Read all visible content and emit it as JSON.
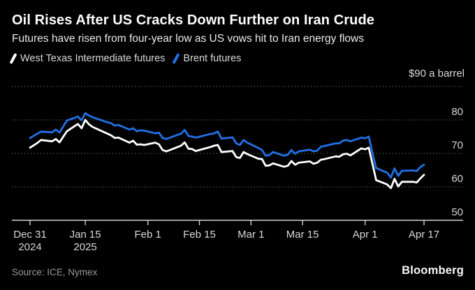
{
  "header": {
    "title": "Oil Rises After US Cracks Down Further on Iran Crude",
    "subtitle": "Futures have risen from four-year low as US vows hit to Iran energy flows"
  },
  "legend": {
    "items": [
      {
        "label": "West Texas Intermediate futures",
        "color": "#ffffff",
        "icon": "line-slash-icon"
      },
      {
        "label": "Brent futures",
        "color": "#2170e4",
        "icon": "line-slash-icon"
      }
    ]
  },
  "footer": {
    "source": "Source: ICE, Nymex",
    "brand": "Bloomberg"
  },
  "colors": {
    "background": "#000000",
    "grid": "#606060",
    "axis": "#d4d4d4",
    "tick_text": "#d9d9d9",
    "wti_line": "#ffffff",
    "brent_line": "#2170e4"
  },
  "chart_data": {
    "type": "line",
    "title": "Oil Rises After US Cracks Down Further on Iran Crude",
    "subtitle": "Futures have risen from four-year low as US vows hit to Iran energy flows",
    "unit_label": "$90 a barrel",
    "grid": "dotted-horizontal",
    "legend_position": "top-left",
    "y_axis": {
      "min": 50,
      "max": 90,
      "ticks": [
        90,
        80,
        70,
        60,
        50
      ],
      "grid_ticks": [
        90,
        80,
        70,
        60
      ],
      "labeled_ticks": [
        80,
        70,
        60,
        50
      ]
    },
    "x_axis": {
      "ticks": [
        {
          "label": "Dec 31",
          "sublabel": "2024",
          "date": "2024-12-31"
        },
        {
          "label": "Jan 15",
          "sublabel": "2025",
          "date": "2025-01-15"
        },
        {
          "label": "Feb 1",
          "date": "2025-02-01"
        },
        {
          "label": "Feb 15",
          "date": "2025-02-15"
        },
        {
          "label": "Mar 1",
          "date": "2025-03-01"
        },
        {
          "label": "Mar 15",
          "date": "2025-03-15"
        },
        {
          "label": "Apr 1",
          "date": "2025-04-01"
        },
        {
          "label": "Apr 17",
          "date": "2025-04-17"
        }
      ]
    },
    "dates": [
      "2024-12-31",
      "2025-01-02",
      "2025-01-03",
      "2025-01-06",
      "2025-01-07",
      "2025-01-08",
      "2025-01-10",
      "2025-01-13",
      "2025-01-14",
      "2025-01-15",
      "2025-01-16",
      "2025-01-17",
      "2025-01-21",
      "2025-01-22",
      "2025-01-23",
      "2025-01-24",
      "2025-01-27",
      "2025-01-28",
      "2025-01-29",
      "2025-01-30",
      "2025-01-31",
      "2025-02-03",
      "2025-02-04",
      "2025-02-05",
      "2025-02-06",
      "2025-02-07",
      "2025-02-10",
      "2025-02-11",
      "2025-02-12",
      "2025-02-13",
      "2025-02-14",
      "2025-02-18",
      "2025-02-19",
      "2025-02-20",
      "2025-02-21",
      "2025-02-24",
      "2025-02-25",
      "2025-02-26",
      "2025-02-27",
      "2025-02-28",
      "2025-03-03",
      "2025-03-04",
      "2025-03-05",
      "2025-03-06",
      "2025-03-07",
      "2025-03-10",
      "2025-03-11",
      "2025-03-12",
      "2025-03-13",
      "2025-03-14",
      "2025-03-17",
      "2025-03-18",
      "2025-03-19",
      "2025-03-20",
      "2025-03-21",
      "2025-03-24",
      "2025-03-25",
      "2025-03-26",
      "2025-03-27",
      "2025-03-28",
      "2025-03-31",
      "2025-04-01",
      "2025-04-02",
      "2025-04-03",
      "2025-04-04",
      "2025-04-07",
      "2025-04-08",
      "2025-04-09",
      "2025-04-10",
      "2025-04-11",
      "2025-04-14",
      "2025-04-15",
      "2025-04-16",
      "2025-04-17"
    ],
    "series": [
      {
        "name": "West Texas Intermediate futures",
        "color": "#ffffff",
        "values": [
          71.7,
          73.1,
          74.0,
          73.6,
          74.3,
          73.3,
          76.6,
          78.8,
          77.5,
          80.0,
          78.7,
          77.9,
          75.9,
          75.4,
          74.6,
          74.7,
          73.2,
          73.8,
          72.6,
          72.7,
          72.5,
          73.2,
          72.7,
          71.0,
          70.6,
          71.0,
          72.3,
          73.3,
          71.4,
          71.3,
          70.7,
          71.9,
          72.3,
          72.5,
          70.4,
          70.7,
          68.9,
          68.6,
          70.4,
          69.8,
          68.4,
          68.3,
          66.3,
          66.4,
          67.0,
          66.0,
          66.3,
          67.7,
          66.6,
          67.2,
          67.6,
          66.9,
          67.2,
          68.1,
          68.3,
          69.1,
          69.0,
          69.7,
          69.9,
          69.4,
          71.5,
          71.2,
          71.7,
          66.9,
          62.0,
          60.7,
          59.6,
          62.4,
          60.1,
          61.5,
          61.5,
          61.3,
          62.5,
          63.6
        ]
      },
      {
        "name": "Brent futures",
        "color": "#2170e4",
        "values": [
          74.6,
          75.9,
          76.5,
          76.3,
          77.1,
          76.2,
          79.8,
          81.0,
          79.9,
          82.0,
          81.3,
          80.8,
          79.3,
          79.0,
          78.3,
          78.5,
          77.1,
          77.5,
          76.6,
          76.9,
          76.8,
          76.0,
          76.2,
          74.6,
          74.3,
          74.7,
          75.9,
          77.0,
          75.2,
          75.0,
          74.7,
          75.8,
          76.0,
          76.5,
          74.4,
          74.8,
          73.0,
          72.5,
          74.0,
          73.2,
          71.6,
          71.0,
          69.3,
          69.5,
          70.4,
          69.3,
          69.6,
          71.0,
          69.9,
          70.6,
          71.1,
          70.6,
          70.8,
          72.0,
          72.2,
          73.0,
          73.0,
          73.8,
          74.0,
          73.6,
          74.7,
          74.5,
          75.0,
          70.1,
          65.6,
          64.2,
          62.8,
          65.5,
          63.3,
          64.8,
          64.9,
          64.7,
          65.9,
          66.6
        ]
      }
    ]
  }
}
